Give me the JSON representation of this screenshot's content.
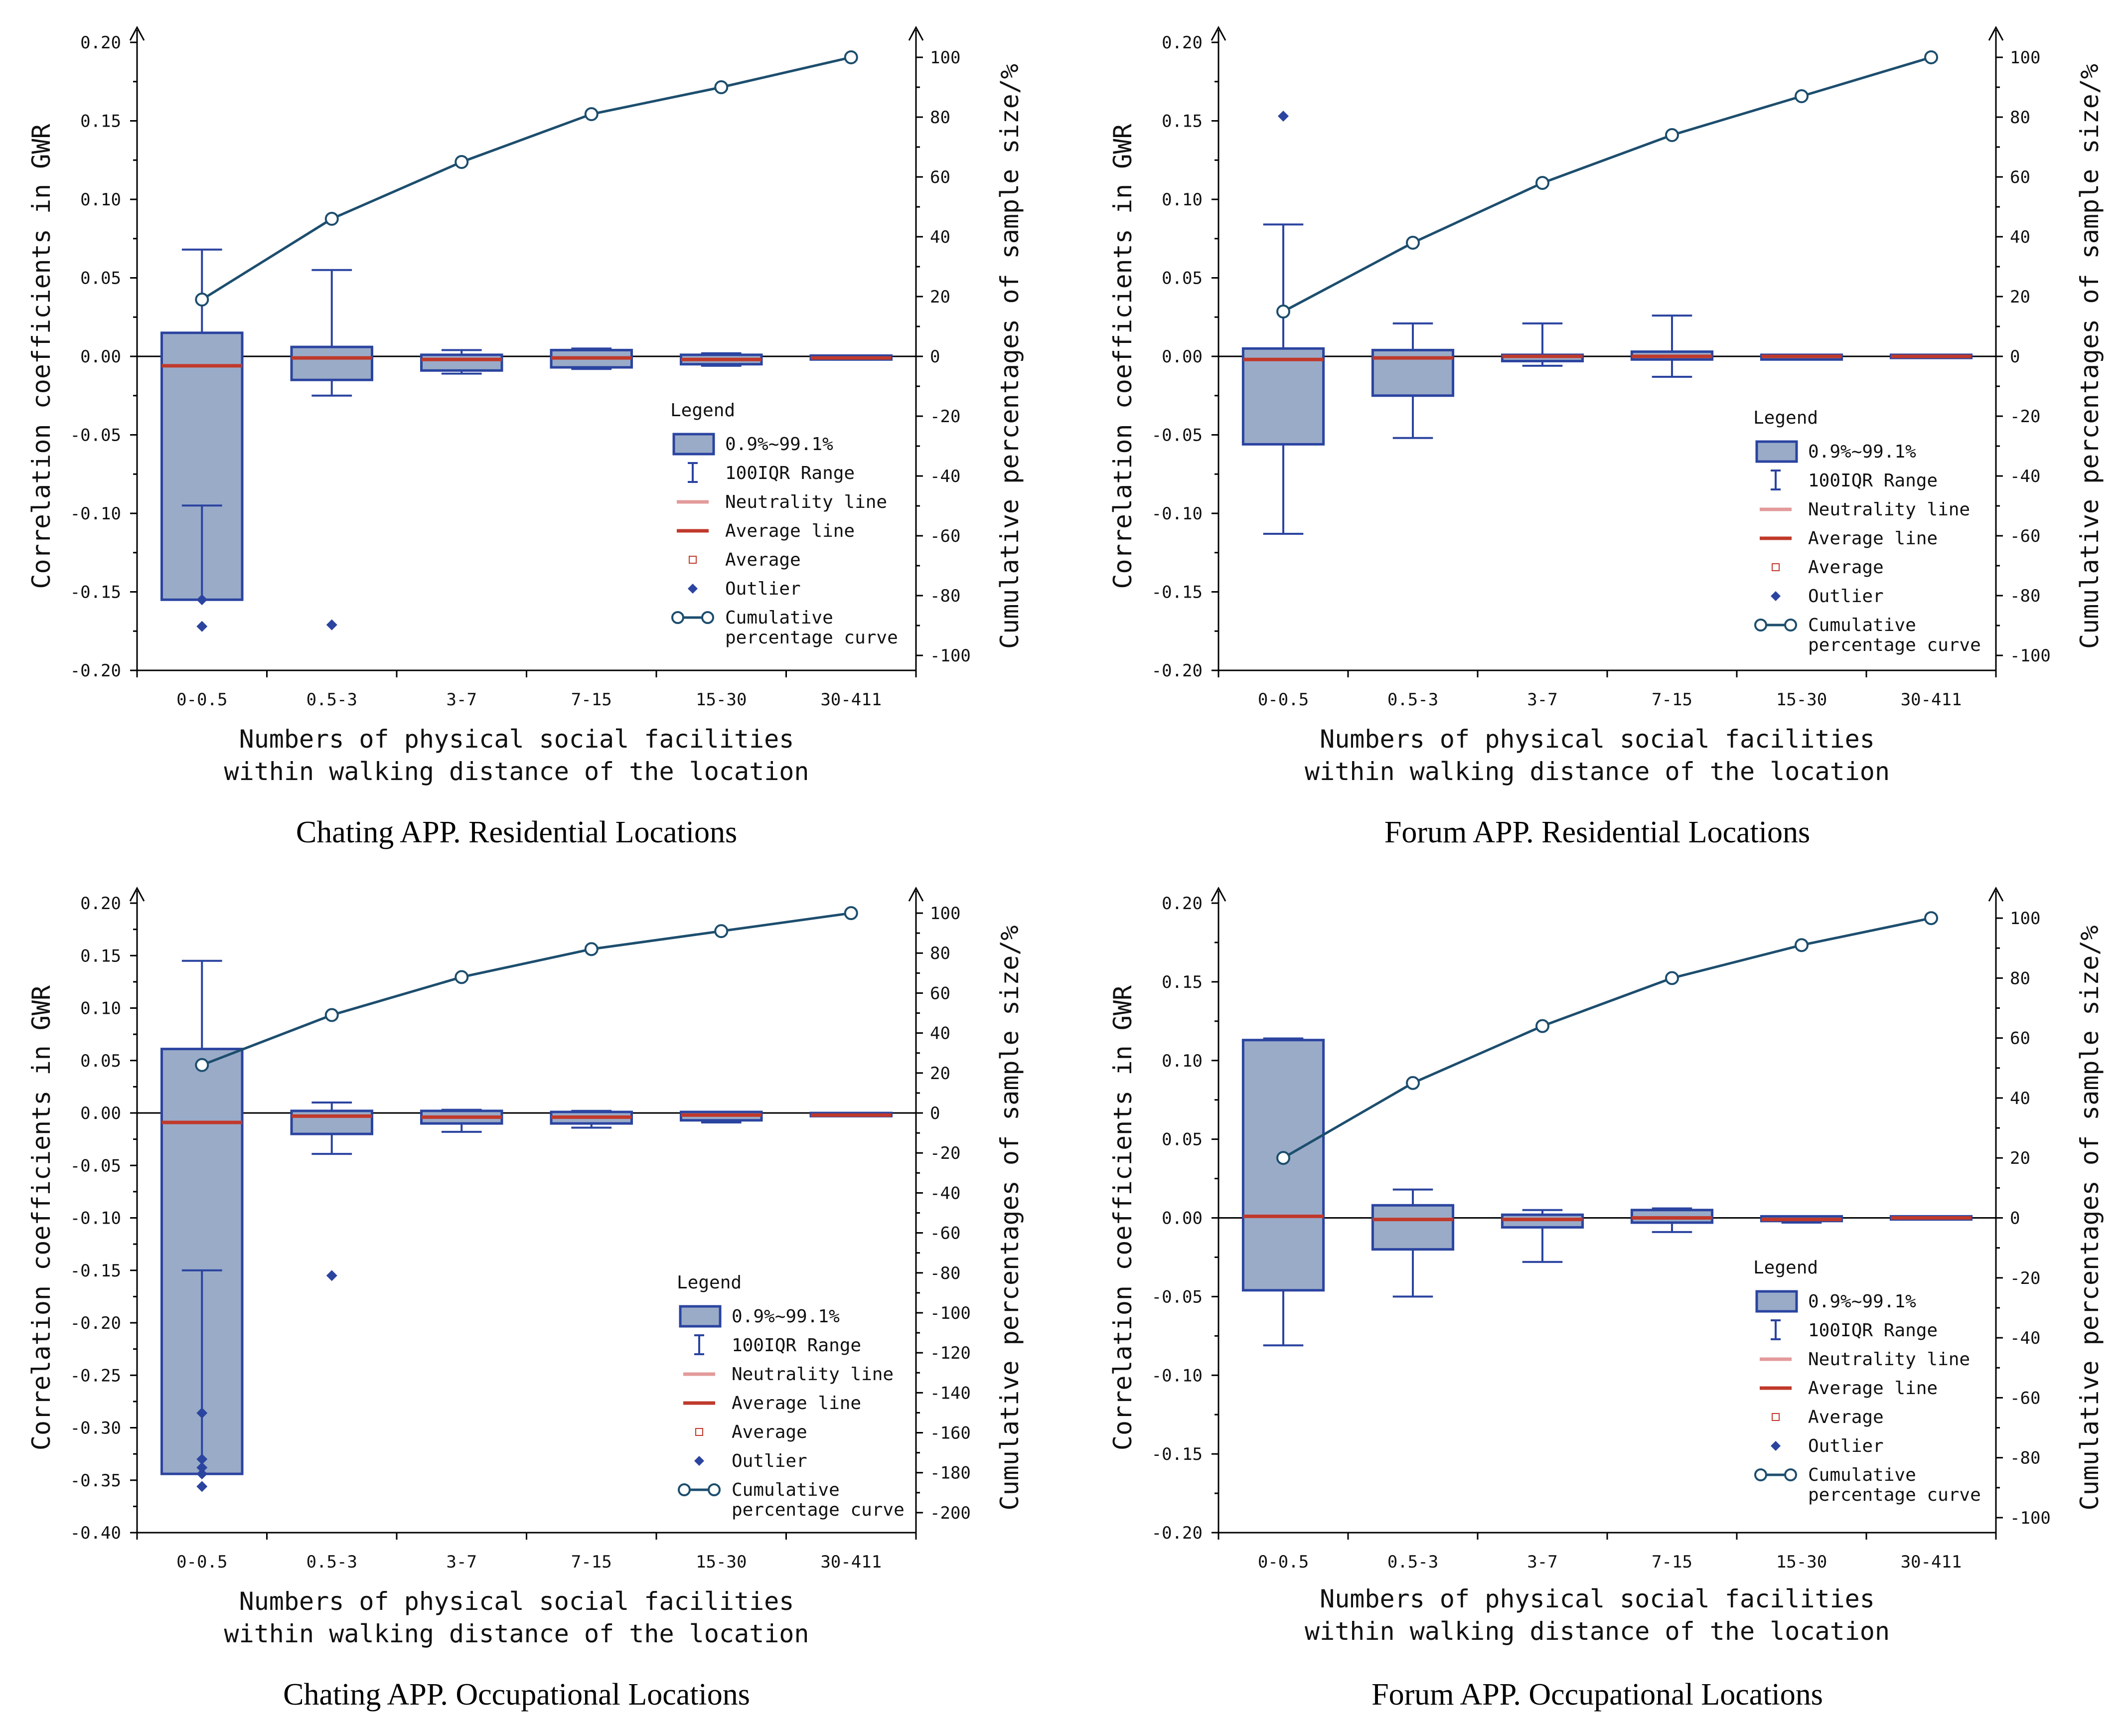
{
  "colors": {
    "box_fill": "#9aabc8",
    "box_stroke": "#2b44a0",
    "whisker": "#2b44a0",
    "average_line": "#c0392b",
    "neutrality_line": "#e39a9a",
    "outlier": "#2b44a0",
    "curve": "#1d4e6e",
    "zero_line": "#000000"
  },
  "chart_data": [
    {
      "type": "box_with_cumulative_curve",
      "title": "Chating APP. Residential Locations",
      "xlabel": [
        "Numbers of physical social facilities",
        "within walking distance of the location"
      ],
      "ylabel": "Correlation coefficients in GWR",
      "y2label": "Cumulative percentages of sample size/%",
      "categories": [
        "0-0.5",
        "0.5-3",
        "3-7",
        "7-15",
        "15-30",
        "30-411"
      ],
      "ylim": [
        -0.2,
        0.2
      ],
      "y_ticks": [
        -0.2,
        -0.15,
        -0.1,
        -0.05,
        0.0,
        0.05,
        0.1,
        0.15,
        0.2
      ],
      "y_tick_labels": [
        "-0.20",
        "-0.15",
        "-0.10",
        "-0.05",
        "0.00",
        "0.05",
        "0.10",
        "0.15",
        "0.20"
      ],
      "y2lim": [
        -105,
        105
      ],
      "y2_ticks": [
        -100,
        -80,
        -60,
        -40,
        -20,
        0,
        20,
        40,
        60,
        80,
        100
      ],
      "y2_tick_labels": [
        "-100",
        "-80",
        "-60",
        "-40",
        "-20",
        "0",
        "20",
        "40",
        "60",
        "80",
        "100"
      ],
      "boxes": [
        {
          "low": -0.155,
          "high": 0.015,
          "whisker_low": -0.095,
          "whisker_high": 0.068,
          "average": -0.006,
          "outliers": [
            -0.155,
            -0.172
          ]
        },
        {
          "low": -0.015,
          "high": 0.006,
          "whisker_low": -0.025,
          "whisker_high": 0.055,
          "average": -0.001,
          "outliers": [
            -0.171
          ]
        },
        {
          "low": -0.009,
          "high": 0.001,
          "whisker_low": -0.011,
          "whisker_high": 0.004,
          "average": -0.002,
          "outliers": []
        },
        {
          "low": -0.007,
          "high": 0.004,
          "whisker_low": -0.008,
          "whisker_high": 0.005,
          "average": -0.001,
          "outliers": []
        },
        {
          "low": -0.005,
          "high": 0.001,
          "whisker_low": -0.006,
          "whisker_high": 0.002,
          "average": -0.002,
          "outliers": []
        },
        {
          "low": -0.002,
          "high": 0.0005,
          "whisker_low": -0.002,
          "whisker_high": 0.0005,
          "average": -0.001,
          "outliers": []
        }
      ],
      "cumulative": [
        19,
        46,
        65,
        81,
        90,
        100
      ]
    },
    {
      "type": "box_with_cumulative_curve",
      "title": "Forum APP. Residential Locations",
      "xlabel": [
        "Numbers of physical social facilities",
        "within walking distance of the location"
      ],
      "ylabel": "Correlation coefficients in GWR",
      "y2label": "Cumulative percentages of sample size/%",
      "categories": [
        "0-0.5",
        "0.5-3",
        "3-7",
        "7-15",
        "15-30",
        "30-411"
      ],
      "ylim": [
        -0.2,
        0.2
      ],
      "y_ticks": [
        -0.2,
        -0.15,
        -0.1,
        -0.05,
        0.0,
        0.05,
        0.1,
        0.15,
        0.2
      ],
      "y_tick_labels": [
        "-0.20",
        "-0.15",
        "-0.10",
        "-0.05",
        "0.00",
        "0.05",
        "0.10",
        "0.15",
        "0.20"
      ],
      "y2lim": [
        -105,
        105
      ],
      "y2_ticks": [
        -100,
        -80,
        -60,
        -40,
        -20,
        0,
        20,
        40,
        60,
        80,
        100
      ],
      "y2_tick_labels": [
        "-100",
        "-80",
        "-60",
        "-40",
        "-20",
        "0",
        "20",
        "40",
        "60",
        "80",
        "100"
      ],
      "boxes": [
        {
          "low": -0.056,
          "high": 0.005,
          "whisker_low": -0.113,
          "whisker_high": 0.084,
          "average": -0.002,
          "outliers": [
            0.153
          ]
        },
        {
          "low": -0.025,
          "high": 0.004,
          "whisker_low": -0.052,
          "whisker_high": 0.021,
          "average": -0.001,
          "outliers": []
        },
        {
          "low": -0.003,
          "high": 0.001,
          "whisker_low": -0.006,
          "whisker_high": 0.021,
          "average": 0.0,
          "outliers": []
        },
        {
          "low": -0.002,
          "high": 0.003,
          "whisker_low": -0.013,
          "whisker_high": 0.026,
          "average": 0.0,
          "outliers": []
        },
        {
          "low": -0.002,
          "high": 0.001,
          "whisker_low": -0.002,
          "whisker_high": 0.001,
          "average": 0.0,
          "outliers": []
        },
        {
          "low": -0.001,
          "high": 0.001,
          "whisker_low": -0.001,
          "whisker_high": 0.001,
          "average": 0.0,
          "outliers": []
        }
      ],
      "cumulative": [
        15,
        38,
        58,
        74,
        87,
        100
      ]
    },
    {
      "type": "box_with_cumulative_curve",
      "title": "Chating APP. Occupational Locations",
      "xlabel": [
        "Numbers of physical social facilities",
        "within walking distance of the location"
      ],
      "ylabel": "Correlation coefficients in GWR",
      "y2label": "Cumulative percentages of sample size/%",
      "categories": [
        "0-0.5",
        "0.5-3",
        "3-7",
        "7-15",
        "15-30",
        "30-411"
      ],
      "ylim": [
        -0.4,
        0.2
      ],
      "y_ticks": [
        -0.4,
        -0.35,
        -0.3,
        -0.25,
        -0.2,
        -0.15,
        -0.1,
        -0.05,
        0.0,
        0.05,
        0.1,
        0.15,
        0.2
      ],
      "y_tick_labels": [
        "-0.40",
        "-0.35",
        "-0.30",
        "-0.25",
        "-0.20",
        "-0.15",
        "-0.10",
        "-0.05",
        "0.00",
        "0.05",
        "0.10",
        "0.15",
        "0.20"
      ],
      "y2lim": [
        -210,
        105
      ],
      "y2_ticks": [
        -200,
        -180,
        -160,
        -140,
        -120,
        -100,
        -80,
        -60,
        -40,
        -20,
        0,
        20,
        40,
        60,
        80,
        100
      ],
      "y2_tick_labels": [
        "-200",
        "-180",
        "-160",
        "-140",
        "-120",
        "-100",
        "-80",
        "-60",
        "-40",
        "-20",
        "0",
        "20",
        "40",
        "60",
        "80",
        "100"
      ],
      "boxes": [
        {
          "low": -0.344,
          "high": 0.061,
          "whisker_low": -0.15,
          "whisker_high": 0.145,
          "average": -0.009,
          "outliers": [
            -0.286,
            -0.33,
            -0.338,
            -0.344,
            -0.356
          ]
        },
        {
          "low": -0.02,
          "high": 0.002,
          "whisker_low": -0.039,
          "whisker_high": 0.01,
          "average": -0.003,
          "outliers": [
            -0.155
          ]
        },
        {
          "low": -0.01,
          "high": 0.002,
          "whisker_low": -0.018,
          "whisker_high": 0.003,
          "average": -0.004,
          "outliers": []
        },
        {
          "low": -0.01,
          "high": 0.001,
          "whisker_low": -0.014,
          "whisker_high": 0.002,
          "average": -0.004,
          "outliers": []
        },
        {
          "low": -0.007,
          "high": 0.001,
          "whisker_low": -0.009,
          "whisker_high": 0.001,
          "average": -0.002,
          "outliers": []
        },
        {
          "low": -0.003,
          "high": 0.0,
          "whisker_low": -0.003,
          "whisker_high": 0.0,
          "average": -0.002,
          "outliers": []
        }
      ],
      "cumulative": [
        24,
        49,
        68,
        82,
        91,
        100
      ]
    },
    {
      "type": "box_with_cumulative_curve",
      "title": "Forum APP. Occupational Locations",
      "xlabel": [
        "Numbers of physical social facilities",
        "within walking distance of the location"
      ],
      "ylabel": "Correlation coefficients in GWR",
      "y2label": "Cumulative percentages of sample size/%",
      "categories": [
        "0-0.5",
        "0.5-3",
        "3-7",
        "7-15",
        "15-30",
        "30-411"
      ],
      "ylim": [
        -0.2,
        0.2
      ],
      "y_ticks": [
        -0.2,
        -0.15,
        -0.1,
        -0.05,
        0.0,
        0.05,
        0.1,
        0.15,
        0.2
      ],
      "y_tick_labels": [
        "-0.20",
        "-0.15",
        "-0.10",
        "-0.05",
        "0.00",
        "0.05",
        "0.10",
        "0.15",
        "0.20"
      ],
      "y2lim": [
        -105,
        105
      ],
      "y2_ticks": [
        -100,
        -80,
        -60,
        -40,
        -20,
        0,
        20,
        40,
        60,
        80,
        100
      ],
      "y2_tick_labels": [
        "-100",
        "-80",
        "-60",
        "-40",
        "-20",
        "0",
        "20",
        "40",
        "60",
        "80",
        "100"
      ],
      "boxes": [
        {
          "low": -0.046,
          "high": 0.113,
          "whisker_low": -0.081,
          "whisker_high": 0.114,
          "average": 0.001,
          "outliers": []
        },
        {
          "low": -0.02,
          "high": 0.008,
          "whisker_low": -0.05,
          "whisker_high": 0.018,
          "average": -0.001,
          "outliers": []
        },
        {
          "low": -0.006,
          "high": 0.002,
          "whisker_low": -0.028,
          "whisker_high": 0.005,
          "average": -0.001,
          "outliers": []
        },
        {
          "low": -0.003,
          "high": 0.005,
          "whisker_low": -0.009,
          "whisker_high": 0.006,
          "average": 0.0,
          "outliers": []
        },
        {
          "low": -0.002,
          "high": 0.001,
          "whisker_low": -0.003,
          "whisker_high": 0.001,
          "average": -0.001,
          "outliers": []
        },
        {
          "low": -0.001,
          "high": 0.001,
          "whisker_low": -0.001,
          "whisker_high": 0.001,
          "average": 0.0,
          "outliers": []
        }
      ],
      "cumulative": [
        20,
        45,
        64,
        80,
        91,
        100
      ]
    }
  ],
  "legend": {
    "title": "Legend",
    "items": [
      {
        "label": "0.9%~99.1%",
        "kind": "box"
      },
      {
        "label": "100IQR Range",
        "kind": "whisker"
      },
      {
        "label": "Neutrality line",
        "kind": "neutrality"
      },
      {
        "label": "Average line",
        "kind": "average-line"
      },
      {
        "label": "Average",
        "kind": "average-marker"
      },
      {
        "label": "Outlier",
        "kind": "outlier"
      },
      {
        "label": "Cumulative",
        "label2": "percentage curve",
        "kind": "curve"
      }
    ]
  }
}
